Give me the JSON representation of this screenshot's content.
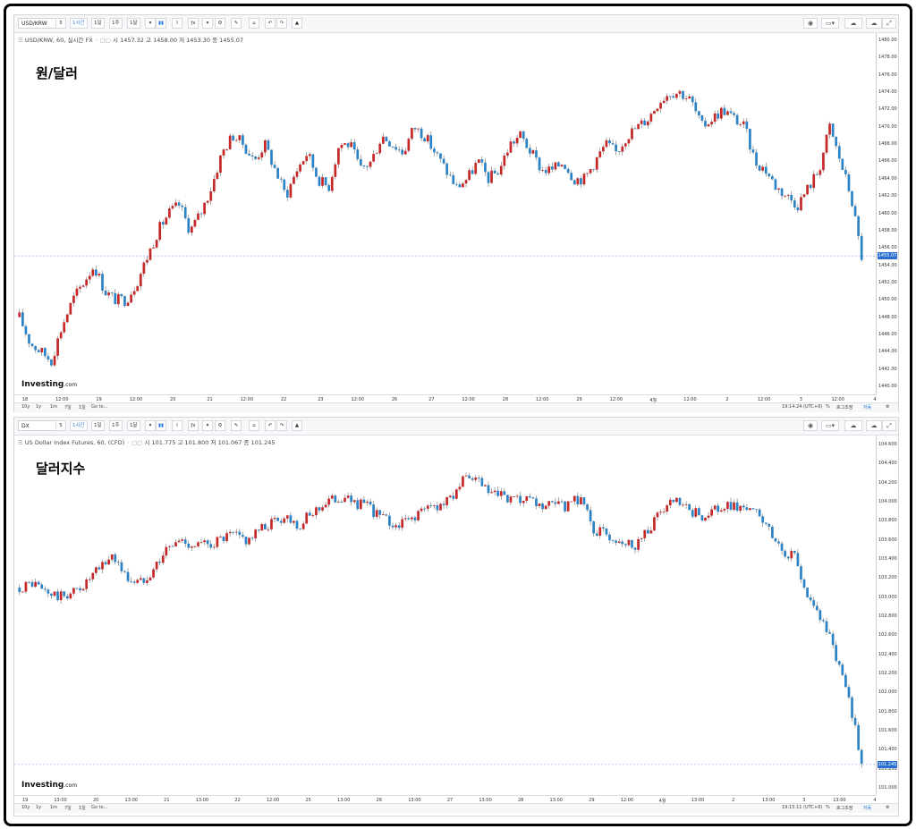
{
  "panels": [
    {
      "toolbar": {
        "symbol": "USD/KRW",
        "interval_buttons": [
          "5",
          "1시간",
          "1일",
          "1주",
          "1달"
        ],
        "tool_icons": [
          "candles-icon",
          "line-chart-icon",
          "indicators-icon",
          "settings-icon",
          "draw-icon",
          "undo-icon",
          "redo-icon",
          "alert-icon"
        ],
        "right_icons": [
          "camera-icon",
          "layout-icon",
          "cloud-save-icon",
          "cloud-load-icon",
          "fullscreen-icon"
        ]
      },
      "legend": "USD/KRW, 60, 실시간 FX",
      "ohlc": {
        "o_label": "시",
        "o": "1457.32",
        "h_label": "고",
        "h": "1458.00",
        "l_label": "저",
        "l": "1453.30",
        "c_label": "종",
        "c": "1455.07"
      },
      "title": "원/달러",
      "y_ticks": [
        "1480.00",
        "1478.00",
        "1476.00",
        "1474.00",
        "1472.00",
        "1470.00",
        "1468.00",
        "1466.00",
        "1464.00",
        "1462.00",
        "1460.00",
        "1458.00",
        "1456.00",
        "1454.00",
        "1452.00",
        "1450.00",
        "1448.00",
        "1446.00",
        "1444.00",
        "1442.00",
        "1440.00"
      ],
      "last_price": "1455.07",
      "x_ticks": [
        "18",
        "12:00",
        "19",
        "12:00",
        "20",
        "21",
        "12:00",
        "22",
        "23",
        "12:00",
        "26",
        "27",
        "12:00",
        "28",
        "12:00",
        "29",
        "12:00",
        "4월",
        "12:00",
        "2",
        "12:00",
        "3",
        "12:00",
        "4"
      ],
      "bottom_left": [
        "10y",
        "1y",
        "1m",
        "7일",
        "1일",
        "Go to..."
      ],
      "bottom_right": {
        "clock": "19:14:24 (UTC+9)",
        "pct": "%",
        "log": "로그조정",
        "auto": "자동"
      },
      "logo": "Investing",
      "logo_suffix": ".com"
    },
    {
      "toolbar": {
        "symbol": "DX",
        "interval_buttons": [
          "5",
          "1시간",
          "1일",
          "1주",
          "1달"
        ],
        "tool_icons": [
          "candles-icon",
          "line-chart-icon",
          "indicators-icon",
          "settings-icon",
          "draw-icon",
          "undo-icon",
          "redo-icon",
          "alert-icon"
        ],
        "right_icons": [
          "camera-icon",
          "layout-icon",
          "cloud-save-icon",
          "cloud-load-icon",
          "fullscreen-icon"
        ]
      },
      "legend": "US Dollar Index Futures, 60, (CFD)",
      "ohlc": {
        "o_label": "시",
        "o": "101.775",
        "h_label": "고",
        "h": "101.800",
        "l_label": "저",
        "l": "101.067",
        "c_label": "종",
        "c": "101.245"
      },
      "title": "달러지수",
      "y_ticks": [
        "104.600",
        "104.400",
        "104.200",
        "104.000",
        "103.800",
        "103.600",
        "103.400",
        "103.200",
        "103.000",
        "102.800",
        "102.600",
        "102.400",
        "102.200",
        "102.000",
        "101.800",
        "101.600",
        "101.400",
        "101.200",
        "101.000"
      ],
      "last_price": "101.245",
      "x_ticks": [
        "19",
        "13:00",
        "20",
        "13:00",
        "21",
        "13:00",
        "22",
        "12:00",
        "25",
        "13:00",
        "26",
        "13:00",
        "27",
        "13:00",
        "28",
        "13:00",
        "29",
        "12:00",
        "4월",
        "13:00",
        "2",
        "13:00",
        "3",
        "13:00",
        "4"
      ],
      "bottom_left": [
        "10y",
        "1y",
        "1m",
        "7일",
        "1일",
        "Go to..."
      ],
      "bottom_right": {
        "clock": "19:15:11 (UTC+9)",
        "pct": "%",
        "log": "로그조정",
        "auto": "자동"
      },
      "logo": "Investing",
      "logo_suffix": ".com"
    }
  ],
  "colors": {
    "up": "#c62828",
    "down": "#2b83c6",
    "priceline": "#7aa6e0"
  },
  "chart_data": [
    {
      "type": "candlestick",
      "title": "원/달러",
      "series": [
        {
          "name": "USD/KRW, 60, 실시간 FX",
          "close_path": [
            1448,
            1445,
            1444,
            1443,
            1447,
            1450,
            1452,
            1454,
            1451,
            1450,
            1450,
            1452,
            1455,
            1458,
            1460,
            1461,
            1458,
            1460,
            1463,
            1467,
            1469,
            1468,
            1466,
            1468,
            1465,
            1462,
            1465,
            1467,
            1464,
            1463,
            1468,
            1468,
            1465,
            1466,
            1469,
            1468,
            1467,
            1470,
            1469,
            1467,
            1465,
            1463,
            1464,
            1466,
            1464,
            1465,
            1468,
            1469,
            1467,
            1465,
            1465,
            1466,
            1464,
            1464,
            1466,
            1468,
            1467,
            1469,
            1470,
            1471,
            1473,
            1474,
            1474,
            1473,
            1470,
            1471,
            1472,
            1471,
            1470,
            1466,
            1465,
            1463,
            1462,
            1461,
            1463,
            1465,
            1470,
            1466,
            1462,
            1455
          ]
        }
      ],
      "ylim": [
        1440,
        1480
      ],
      "last": 1455.07
    },
    {
      "type": "candlestick",
      "title": "달러지수",
      "series": [
        {
          "name": "US Dollar Index Futures, 60, (CFD)",
          "close_path": [
            103.1,
            103.15,
            103.05,
            103.0,
            103.05,
            103.15,
            103.3,
            103.45,
            103.2,
            103.15,
            103.3,
            103.5,
            103.6,
            103.55,
            103.55,
            103.6,
            103.65,
            103.6,
            103.7,
            103.8,
            103.85,
            103.75,
            103.9,
            104.0,
            104.05,
            104.0,
            103.95,
            103.85,
            103.75,
            103.8,
            103.9,
            103.95,
            104.0,
            104.2,
            104.25,
            104.1,
            104.05,
            104.0,
            104.0,
            103.95,
            103.95,
            103.95,
            104.05,
            103.7,
            103.65,
            103.6,
            103.55,
            103.7,
            103.9,
            104.0,
            103.9,
            103.85,
            103.9,
            103.95,
            103.95,
            103.9,
            103.7,
            103.5,
            103.4,
            103.0,
            102.8,
            102.4,
            102.0,
            101.245
          ]
        }
      ],
      "ylim": [
        101.0,
        104.6
      ],
      "last": 101.245
    }
  ]
}
